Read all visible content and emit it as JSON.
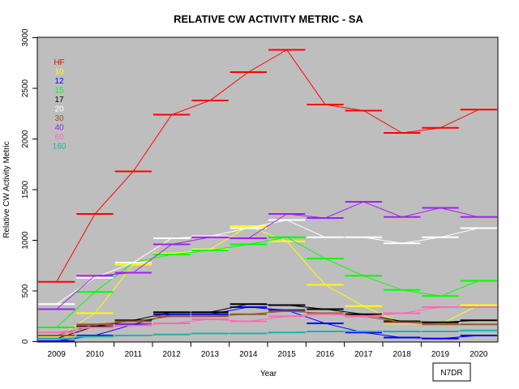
{
  "chart_data": {
    "type": "line",
    "title": "RELATIVE CW ACTIVITY METRIC - SA",
    "xlabel": "Year",
    "ylabel": "Relative CW Activity Metric",
    "categories": [
      "2009",
      "2010",
      "2011",
      "2012",
      "2013",
      "2014",
      "2015",
      "2016",
      "2017",
      "2018",
      "2019",
      "2020"
    ],
    "ylim": [
      0,
      3000
    ],
    "yticks": [
      0,
      500,
      1000,
      1500,
      2000,
      2500,
      3000
    ],
    "grid": false,
    "background": "#bebebe",
    "legend_placement": "top-left",
    "annotation": "N7DR",
    "series": [
      {
        "name": "HF",
        "color": "#ff0000",
        "values": [
          590,
          1260,
          1680,
          2240,
          2380,
          2660,
          2880,
          2340,
          2280,
          2060,
          2110,
          2290
        ]
      },
      {
        "name": "10",
        "color": "#ffff00",
        "values": [
          40,
          280,
          760,
          870,
          910,
          1140,
          990,
          560,
          350,
          180,
          170,
          360
        ]
      },
      {
        "name": "12",
        "color": "#0000ff",
        "values": [
          5,
          60,
          170,
          270,
          270,
          340,
          310,
          180,
          90,
          40,
          30,
          60
        ]
      },
      {
        "name": "15",
        "color": "#00ff00",
        "values": [
          140,
          490,
          780,
          860,
          900,
          960,
          1030,
          820,
          650,
          510,
          450,
          600
        ]
      },
      {
        "name": "17",
        "color": "#000000",
        "values": [
          30,
          150,
          210,
          290,
          290,
          370,
          360,
          320,
          270,
          200,
          190,
          210
        ]
      },
      {
        "name": "20",
        "color": "#ffffff",
        "values": [
          370,
          630,
          780,
          1020,
          1040,
          1120,
          1200,
          1030,
          1030,
          970,
          1030,
          1120
        ]
      },
      {
        "name": "30",
        "color": "#a0522d",
        "values": [
          60,
          170,
          200,
          250,
          250,
          270,
          300,
          280,
          250,
          190,
          170,
          170
        ]
      },
      {
        "name": "40",
        "color": "#a020f0",
        "values": [
          320,
          650,
          680,
          960,
          1030,
          1020,
          1260,
          1220,
          1380,
          1230,
          1320,
          1230
        ]
      },
      {
        "name": "60",
        "color": "#ff69b4",
        "values": [
          90,
          140,
          160,
          180,
          220,
          200,
          250,
          270,
          250,
          280,
          340,
          340
        ]
      },
      {
        "name": "160",
        "color": "#20b2aa",
        "values": [
          30,
          50,
          60,
          70,
          80,
          80,
          90,
          100,
          100,
          100,
          100,
          110
        ]
      }
    ]
  }
}
